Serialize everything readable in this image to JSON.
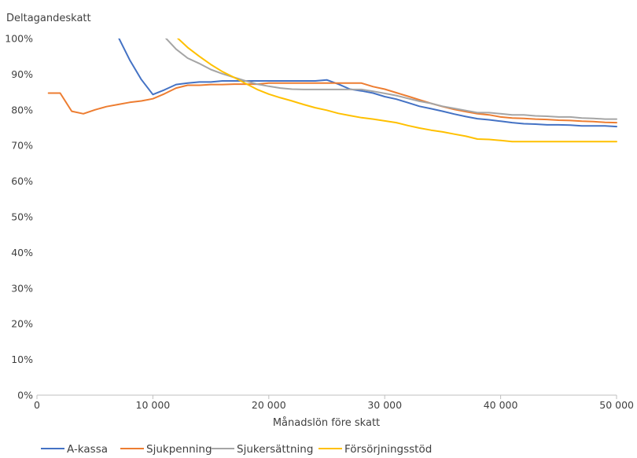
{
  "chart_data": {
    "type": "line",
    "title": "",
    "ylabel": "Deltagandeskatt",
    "xlabel": "Månadslön före skatt",
    "xlim": [
      0,
      50000
    ],
    "ylim": [
      0,
      100
    ],
    "grid": false,
    "legend_position": "bottom-left",
    "x_ticks": [
      0,
      10000,
      20000,
      30000,
      40000,
      50000
    ],
    "x_tick_labels": [
      "0",
      "10 000",
      "20 000",
      "30 000",
      "40 000",
      "50 000"
    ],
    "y_ticks": [
      0,
      10,
      20,
      30,
      40,
      50,
      60,
      70,
      80,
      90,
      100
    ],
    "y_tick_labels": [
      "0%",
      "10%",
      "20%",
      "30%",
      "40%",
      "50%",
      "60%",
      "70%",
      "80%",
      "90%",
      "100%"
    ],
    "series": [
      {
        "name": "A-kassa",
        "color": "#4472C4",
        "points": [
          [
            7000,
            100.5
          ],
          [
            8000,
            94
          ],
          [
            9000,
            88.5
          ],
          [
            10000,
            84.3
          ],
          [
            11000,
            85.6
          ],
          [
            12000,
            87.1
          ],
          [
            13000,
            87.5
          ],
          [
            14000,
            87.8
          ],
          [
            15000,
            87.8
          ],
          [
            16000,
            88.1
          ],
          [
            17000,
            88.1
          ],
          [
            18000,
            88.1
          ],
          [
            19000,
            88.1
          ],
          [
            20000,
            88.1
          ],
          [
            21000,
            88.1
          ],
          [
            22000,
            88.1
          ],
          [
            23000,
            88.1
          ],
          [
            24000,
            88.1
          ],
          [
            25000,
            88.4
          ],
          [
            26000,
            87.2
          ],
          [
            27000,
            85.8
          ],
          [
            28000,
            85.3
          ],
          [
            29000,
            84.7
          ],
          [
            30000,
            83.7
          ],
          [
            31000,
            83
          ],
          [
            32000,
            82
          ],
          [
            33000,
            81
          ],
          [
            34000,
            80.3
          ],
          [
            35000,
            79.6
          ],
          [
            36000,
            78.8
          ],
          [
            37000,
            78.1
          ],
          [
            38000,
            77.5
          ],
          [
            39000,
            77.2
          ],
          [
            40000,
            76.8
          ],
          [
            41000,
            76.4
          ],
          [
            42000,
            76.1
          ],
          [
            43000,
            76
          ],
          [
            44000,
            75.8
          ],
          [
            45000,
            75.8
          ],
          [
            46000,
            75.7
          ],
          [
            47000,
            75.5
          ],
          [
            48000,
            75.5
          ],
          [
            49000,
            75.5
          ],
          [
            50000,
            75.3
          ]
        ]
      },
      {
        "name": "Sjukpenning",
        "color": "#ED7D31",
        "points": [
          [
            1000,
            84.7
          ],
          [
            2000,
            84.7
          ],
          [
            3000,
            79.6
          ],
          [
            4000,
            78.9
          ],
          [
            5000,
            80
          ],
          [
            6000,
            80.9
          ],
          [
            7000,
            81.5
          ],
          [
            8000,
            82.1
          ],
          [
            9000,
            82.5
          ],
          [
            10000,
            83.1
          ],
          [
            11000,
            84.5
          ],
          [
            12000,
            86.1
          ],
          [
            13000,
            86.9
          ],
          [
            14000,
            86.9
          ],
          [
            15000,
            87.1
          ],
          [
            16000,
            87.1
          ],
          [
            17000,
            87.2
          ],
          [
            18000,
            87.2
          ],
          [
            19000,
            87.2
          ],
          [
            20000,
            87.5
          ],
          [
            21000,
            87.5
          ],
          [
            22000,
            87.5
          ],
          [
            23000,
            87.5
          ],
          [
            24000,
            87.5
          ],
          [
            25000,
            87.5
          ],
          [
            26000,
            87.5
          ],
          [
            27000,
            87.5
          ],
          [
            28000,
            87.5
          ],
          [
            29000,
            86.5
          ],
          [
            30000,
            85.8
          ],
          [
            31000,
            84.8
          ],
          [
            32000,
            83.8
          ],
          [
            33000,
            82.8
          ],
          [
            34000,
            81.8
          ],
          [
            35000,
            80.9
          ],
          [
            36000,
            80.1
          ],
          [
            37000,
            79.5
          ],
          [
            38000,
            78.9
          ],
          [
            39000,
            78.6
          ],
          [
            40000,
            78
          ],
          [
            41000,
            77.7
          ],
          [
            42000,
            77.6
          ],
          [
            43000,
            77.4
          ],
          [
            44000,
            77.3
          ],
          [
            45000,
            77.1
          ],
          [
            46000,
            77
          ],
          [
            47000,
            76.8
          ],
          [
            48000,
            76.7
          ],
          [
            49000,
            76.5
          ],
          [
            50000,
            76.4
          ]
        ]
      },
      {
        "name": "Sjukersättning",
        "color": "#A5A5A5",
        "points": [
          [
            11000,
            100.5
          ],
          [
            12000,
            97
          ],
          [
            13000,
            94.5
          ],
          [
            14000,
            93
          ],
          [
            15000,
            91.3
          ],
          [
            16000,
            90.1
          ],
          [
            17000,
            89.1
          ],
          [
            18000,
            88.1
          ],
          [
            19000,
            87.2
          ],
          [
            20000,
            86.6
          ],
          [
            21000,
            86.1
          ],
          [
            22000,
            85.8
          ],
          [
            23000,
            85.7
          ],
          [
            24000,
            85.7
          ],
          [
            25000,
            85.7
          ],
          [
            26000,
            85.7
          ],
          [
            27000,
            85.7
          ],
          [
            28000,
            85.7
          ],
          [
            29000,
            85.2
          ],
          [
            30000,
            84.6
          ],
          [
            31000,
            84
          ],
          [
            32000,
            83.2
          ],
          [
            33000,
            82.4
          ],
          [
            34000,
            81.8
          ],
          [
            35000,
            81
          ],
          [
            36000,
            80.4
          ],
          [
            37000,
            79.8
          ],
          [
            38000,
            79.2
          ],
          [
            39000,
            79.2
          ],
          [
            40000,
            78.9
          ],
          [
            41000,
            78.6
          ],
          [
            42000,
            78.6
          ],
          [
            43000,
            78.3
          ],
          [
            44000,
            78.2
          ],
          [
            45000,
            78
          ],
          [
            46000,
            78
          ],
          [
            47000,
            77.7
          ],
          [
            48000,
            77.6
          ],
          [
            49000,
            77.4
          ],
          [
            50000,
            77.4
          ]
        ]
      },
      {
        "name": "Försörjningsstöd",
        "color": "#FFC000",
        "points": [
          [
            12000,
            100.5
          ],
          [
            13000,
            97.5
          ],
          [
            14000,
            95
          ],
          [
            15000,
            92.7
          ],
          [
            16000,
            90.7
          ],
          [
            17000,
            89.1
          ],
          [
            18000,
            87.4
          ],
          [
            19000,
            85.7
          ],
          [
            20000,
            84.4
          ],
          [
            21000,
            83.4
          ],
          [
            22000,
            82.5
          ],
          [
            23000,
            81.5
          ],
          [
            24000,
            80.6
          ],
          [
            25000,
            79.9
          ],
          [
            26000,
            79
          ],
          [
            27000,
            78.4
          ],
          [
            28000,
            77.8
          ],
          [
            29000,
            77.4
          ],
          [
            30000,
            76.9
          ],
          [
            31000,
            76.4
          ],
          [
            32000,
            75.6
          ],
          [
            33000,
            74.9
          ],
          [
            34000,
            74.3
          ],
          [
            35000,
            73.8
          ],
          [
            36000,
            73.2
          ],
          [
            37000,
            72.6
          ],
          [
            38000,
            71.8
          ],
          [
            39000,
            71.7
          ],
          [
            40000,
            71.4
          ],
          [
            41000,
            71.1
          ],
          [
            42000,
            71.1
          ],
          [
            43000,
            71.1
          ],
          [
            44000,
            71.1
          ],
          [
            45000,
            71.1
          ],
          [
            46000,
            71.1
          ],
          [
            47000,
            71.1
          ],
          [
            48000,
            71.1
          ],
          [
            49000,
            71.1
          ],
          [
            50000,
            71.1
          ]
        ]
      }
    ]
  }
}
